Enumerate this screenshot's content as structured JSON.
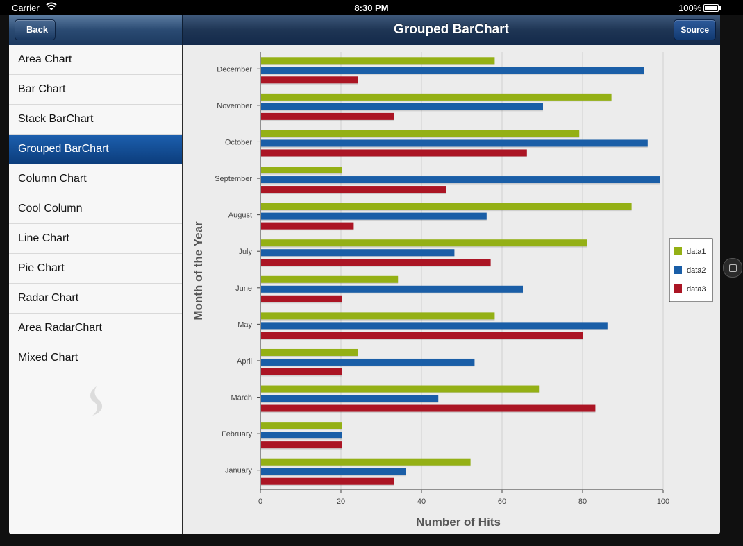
{
  "status_bar": {
    "carrier": "Carrier",
    "time": "8:30 PM",
    "battery": "100%"
  },
  "nav": {
    "back_label": "Back",
    "title": "Grouped BarChart",
    "source_label": "Source"
  },
  "sidebar": {
    "items": [
      {
        "label": "Area Chart",
        "selected": false
      },
      {
        "label": "Bar Chart",
        "selected": false
      },
      {
        "label": "Stack BarChart",
        "selected": false
      },
      {
        "label": "Grouped BarChart",
        "selected": true
      },
      {
        "label": "Column Chart",
        "selected": false
      },
      {
        "label": "Cool Column",
        "selected": false
      },
      {
        "label": "Line Chart",
        "selected": false
      },
      {
        "label": "Pie Chart",
        "selected": false
      },
      {
        "label": "Radar Chart",
        "selected": false
      },
      {
        "label": "Area RadarChart",
        "selected": false
      },
      {
        "label": "Mixed Chart",
        "selected": false
      }
    ]
  },
  "colors": {
    "data1": "#94b015",
    "data2": "#1a5ea7",
    "data3": "#ab1524",
    "selected_item": "#1c5fae"
  },
  "chart_data": {
    "type": "bar",
    "orientation": "horizontal",
    "categories": [
      "December",
      "November",
      "October",
      "September",
      "August",
      "July",
      "June",
      "May",
      "April",
      "March",
      "February",
      "January"
    ],
    "series": [
      {
        "name": "data1",
        "values": [
          58,
          87,
          79,
          20,
          92,
          81,
          34,
          58,
          24,
          69,
          20,
          52
        ]
      },
      {
        "name": "data2",
        "values": [
          95,
          70,
          96,
          99,
          56,
          48,
          65,
          86,
          53,
          44,
          20,
          36
        ]
      },
      {
        "name": "data3",
        "values": [
          24,
          33,
          66,
          46,
          23,
          57,
          20,
          80,
          20,
          83,
          20,
          33
        ]
      }
    ],
    "xlabel": "Number of Hits",
    "ylabel": "Month of the Year",
    "xlim": [
      0,
      100
    ],
    "xticks": [
      0,
      20,
      40,
      60,
      80,
      100
    ],
    "grid": true,
    "legend": "right"
  }
}
